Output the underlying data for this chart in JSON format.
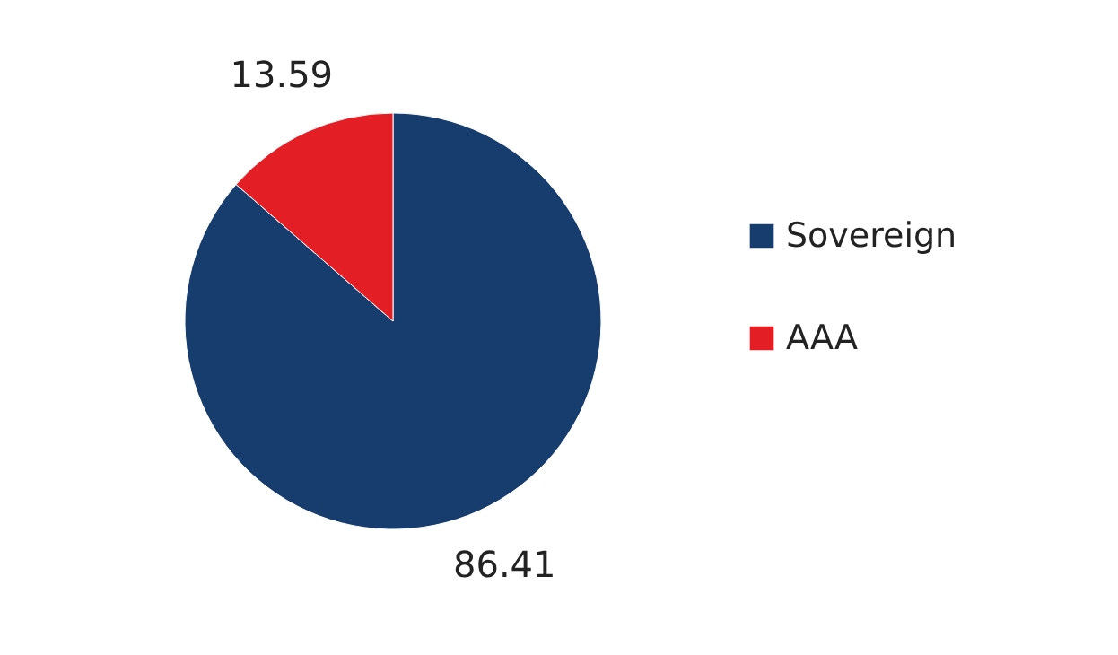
{
  "chart_data": {
    "type": "pie",
    "categories": [
      "Sovereign",
      "AAA"
    ],
    "values": [
      86.41,
      13.59
    ],
    "colors": [
      "#173c6e",
      "#e31e24"
    ],
    "data_labels": true,
    "legend": "right"
  }
}
